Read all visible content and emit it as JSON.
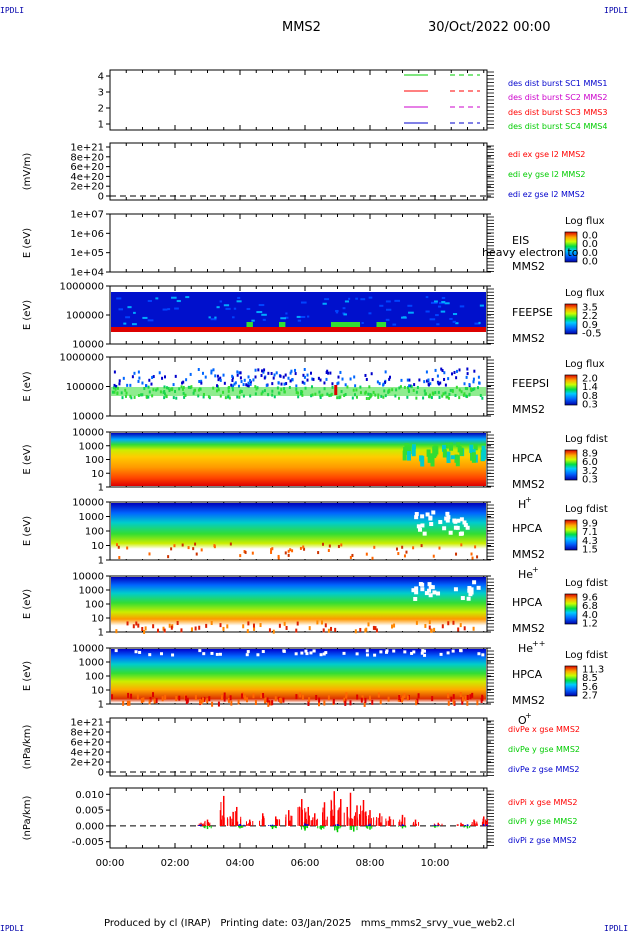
{
  "header": {
    "corner_tl": "IPDLI",
    "corner_tr": "IPDLI",
    "corner_bl": "IPDLI",
    "corner_br": "IPDLI",
    "mission": "MMS2",
    "date": "30/Oct/2022 00:00"
  },
  "footer": {
    "text": "Produced by cl (IRAP)   Printing date: 03/Jan/2025   mms_mms2_srvy_vue_web2.cl"
  },
  "colors": {
    "red": "#ff0000",
    "green": "#00cc00",
    "blue": "#0000cc",
    "magenta": "#cc00cc"
  },
  "chart_data": [
    {
      "type": "line",
      "panel": "burst",
      "ylim": [
        0.5,
        4.5
      ],
      "yticks": [
        "1",
        "2",
        "3",
        "4"
      ],
      "legend": [
        {
          "label": "des dist burst SC1 MMS1",
          "color": "#0000cc"
        },
        {
          "label": "des dist burst SC2 MMS2",
          "color": "#cc00cc"
        },
        {
          "label": "des dist burst SC3 MMS3",
          "color": "#ff0000"
        },
        {
          "label": "des dist burst SC4 MMS4",
          "color": "#00cc00"
        }
      ],
      "key_colors": [
        "#00cc00",
        "#ff0000",
        "#cc00cc",
        "#0000cc"
      ]
    },
    {
      "type": "line",
      "panel": "edi",
      "ylabel": "(mV/m)",
      "yticks": [
        "0",
        "2e+20",
        "4e+20",
        "6e+20",
        "8e+20",
        "1e+21"
      ],
      "legend": [
        {
          "label": "edi ex gse l2 MMS2",
          "color": "#ff0000"
        },
        {
          "label": "edi ey gse l2 MMS2",
          "color": "#00cc00"
        },
        {
          "label": "edi ez gse l2 MMS2",
          "color": "#0000cc"
        }
      ]
    },
    {
      "type": "heatmap",
      "panel": "eis",
      "ylabel": "E (eV)",
      "yticks": [
        "1e+04",
        "1e+05",
        "1e+06",
        "1e+07"
      ],
      "instrument": "EIS",
      "sc": "MMS2",
      "overlay_text": "heavy electron to",
      "colorbar_title": "Log flux",
      "colorbar_ticks": [
        "0.0",
        "0.0",
        "0.0",
        "0.0"
      ]
    },
    {
      "type": "heatmap",
      "panel": "feepse",
      "ylabel": "E (eV)",
      "yticks": [
        "10000",
        "100000",
        "1000000"
      ],
      "instrument": "FEEPSE",
      "sc": "MMS2",
      "colorbar_title": "Log flux",
      "colorbar_ticks": [
        "3.5",
        "2.2",
        "0.9",
        "-0.5"
      ]
    },
    {
      "type": "heatmap",
      "panel": "feepsi",
      "ylabel": "E (eV)",
      "yticks": [
        "10000",
        "100000",
        "1000000"
      ],
      "instrument": "FEEPSI",
      "sc": "MMS2",
      "colorbar_title": "Log flux",
      "colorbar_ticks": [
        "2.0",
        "1.4",
        "0.8",
        "0.3"
      ]
    },
    {
      "type": "heatmap",
      "panel": "hpca-h",
      "ylabel": "E (eV)",
      "yticks": [
        "1",
        "10",
        "100",
        "1000",
        "10000"
      ],
      "instrument": "HPCA",
      "sc": "MMS2",
      "species": "H",
      "charge": "+",
      "colorbar_title": "Log fdist",
      "colorbar_ticks": [
        "8.9",
        "6.0",
        "3.2",
        "0.3"
      ]
    },
    {
      "type": "heatmap",
      "panel": "hpca-he",
      "ylabel": "E (eV)",
      "yticks": [
        "1",
        "10",
        "100",
        "1000",
        "10000"
      ],
      "instrument": "HPCA",
      "sc": "MMS2",
      "species": "He",
      "charge": "+",
      "colorbar_title": "Log fdist",
      "colorbar_ticks": [
        "9.9",
        "7.1",
        "4.3",
        "1.5"
      ]
    },
    {
      "type": "heatmap",
      "panel": "hpca-he2",
      "ylabel": "E (eV)",
      "yticks": [
        "1",
        "10",
        "100",
        "1000",
        "10000"
      ],
      "instrument": "HPCA",
      "sc": "MMS2",
      "species": "He",
      "charge": "++",
      "colorbar_title": "Log fdist",
      "colorbar_ticks": [
        "9.6",
        "6.8",
        "4.0",
        "1.2"
      ]
    },
    {
      "type": "heatmap",
      "panel": "hpca-o",
      "ylabel": "E (eV)",
      "yticks": [
        "1",
        "10",
        "100",
        "1000",
        "10000"
      ],
      "instrument": "HPCA",
      "sc": "MMS2",
      "species": "O",
      "charge": "+",
      "colorbar_title": "Log fdist",
      "colorbar_ticks": [
        "11.3",
        "8.5",
        "5.6",
        "2.7"
      ]
    },
    {
      "type": "line",
      "panel": "divpe",
      "ylabel": "(nPa/km)",
      "yticks": [
        "0",
        "2e+20",
        "4e+20",
        "6e+20",
        "8e+20",
        "1e+21"
      ],
      "legend": [
        {
          "label": "divPe x gse MMS2",
          "color": "#ff0000"
        },
        {
          "label": "divPe y gse MMS2",
          "color": "#00cc00"
        },
        {
          "label": "divPe z gse MMS2",
          "color": "#0000cc"
        }
      ]
    },
    {
      "type": "line",
      "panel": "divpi",
      "ylabel": "(nPa/km)",
      "ylim": [
        -0.007,
        0.012
      ],
      "yticks": [
        "-0.005",
        "0.000",
        "0.005",
        "0.010"
      ],
      "yticks_values": [
        -0.005,
        0,
        0.005,
        0.01
      ],
      "legend": [
        {
          "label": "divPi x gse MMS2",
          "color": "#ff0000"
        },
        {
          "label": "divPi y gse MMS2",
          "color": "#00cc00"
        },
        {
          "label": "divPi z gse MMS2",
          "color": "#0000cc"
        }
      ],
      "xlim": [
        0,
        11.6
      ],
      "x_unit": "hours",
      "series_x": [
        {
          "name": "x",
          "color": "#ff0000",
          "x": [
            2.8,
            3.0,
            3.4,
            3.5,
            3.7,
            3.9,
            4.3,
            4.7,
            5.1,
            5.5,
            5.9,
            6.1,
            6.3,
            6.6,
            6.9,
            7.1,
            7.3,
            7.4,
            7.6,
            7.8,
            8.0,
            8.3,
            8.6,
            9.0,
            9.4,
            10.1,
            10.8,
            11.2,
            11.5
          ],
          "y": [
            0.001,
            0.002,
            0.005,
            0.0095,
            0.003,
            0.006,
            0.002,
            0.004,
            0.003,
            0.005,
            0.0085,
            0.006,
            0.004,
            0.0075,
            0.011,
            0.0085,
            0.006,
            0.0105,
            0.0065,
            0.0082,
            0.005,
            0.004,
            0.003,
            0.0035,
            0.002,
            0.001,
            0.001,
            0.002,
            0.003
          ]
        },
        {
          "name": "y",
          "color": "#00cc00",
          "x": [
            3.0,
            4.0,
            5.0,
            6.0,
            6.5,
            7.0,
            7.5,
            8.0,
            9.0,
            10.0,
            11.0
          ],
          "y": [
            -0.001,
            -0.0008,
            -0.001,
            -0.0015,
            -0.0012,
            -0.002,
            -0.0018,
            -0.0012,
            -0.0008,
            -0.0006,
            -0.0008
          ]
        },
        {
          "name": "z",
          "color": "#0000cc",
          "x": [
            2.8,
            4.0,
            5.0,
            6.0,
            7.0,
            8.0,
            9.0,
            10.0,
            11.0,
            11.5
          ],
          "y": [
            0.0005,
            0.0006,
            0.0004,
            0.0008,
            0.0006,
            0.0007,
            0.0005,
            0.0004,
            0.0005,
            0.0006
          ]
        }
      ]
    }
  ],
  "x_axis": {
    "labels": [
      "00:00",
      "02:00",
      "04:00",
      "06:00",
      "08:00",
      "10:00"
    ],
    "values": [
      0,
      2,
      4,
      6,
      8,
      10
    ],
    "xlim": [
      0,
      11.6
    ]
  }
}
